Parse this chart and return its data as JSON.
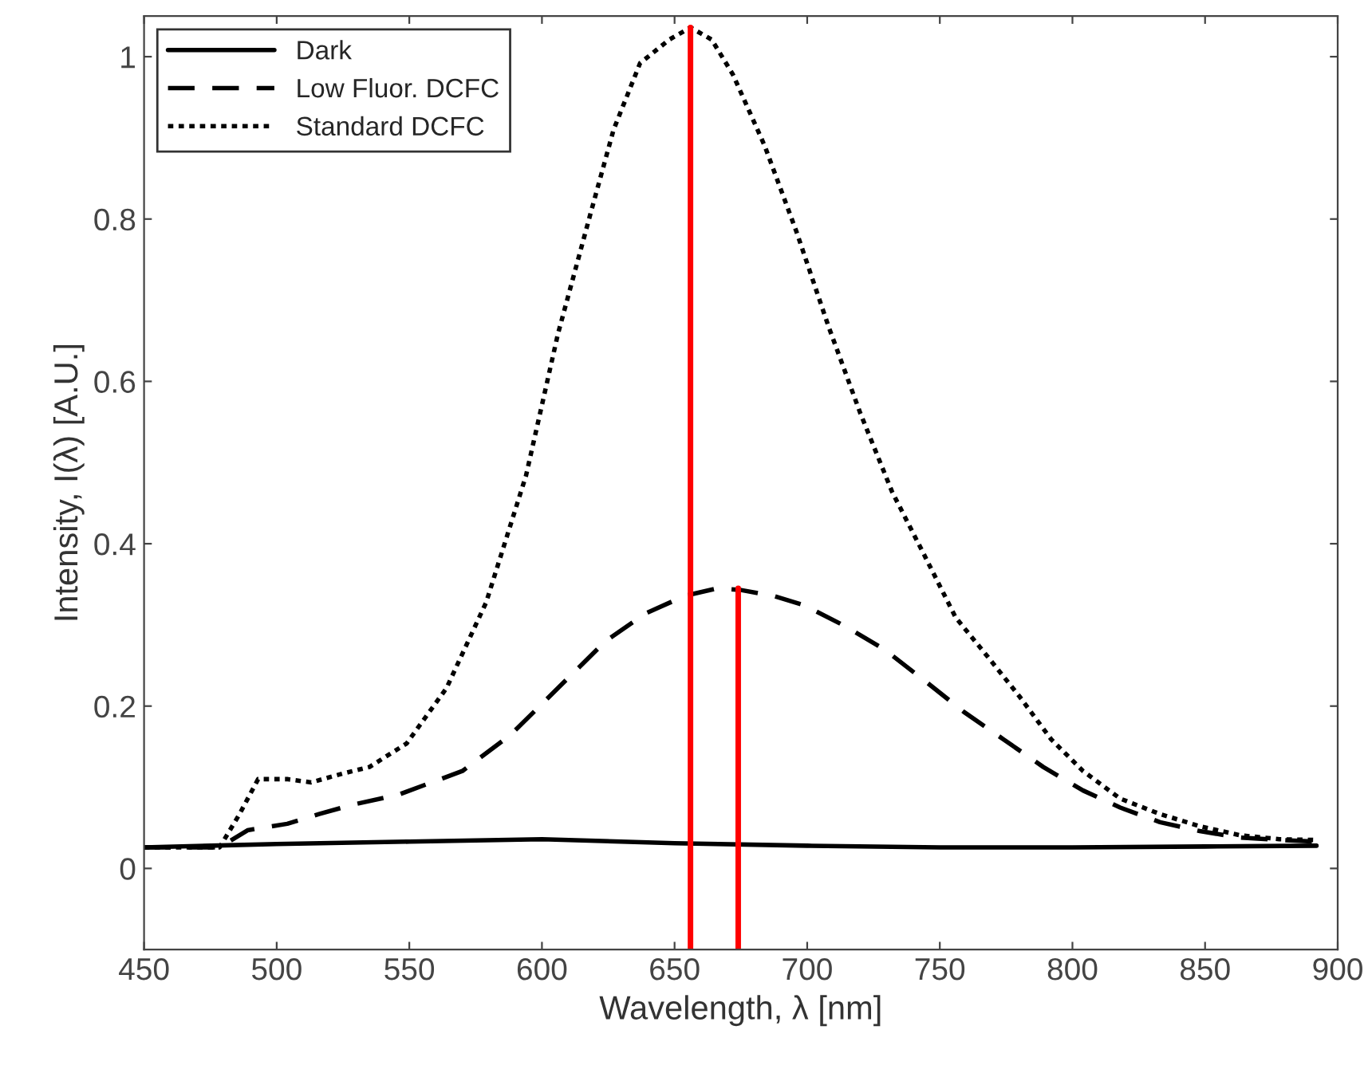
{
  "chart_data": {
    "type": "line",
    "xlabel": "Wavelength, λ [nm]",
    "ylabel": "Intensity, I(λ) [A.U.]",
    "xlim": [
      450,
      900
    ],
    "xticks": [
      450,
      500,
      550,
      600,
      650,
      700,
      750,
      800,
      850,
      900
    ],
    "ylim": [
      -0.1,
      1.05
    ],
    "yticks": [
      0,
      0.2,
      0.4,
      0.6,
      0.8,
      1
    ],
    "grid": false,
    "legend": "top left",
    "marker": "none",
    "series": [
      {
        "name": "Dark",
        "color": "#000000",
        "line_style": "solid",
        "x": [
          450,
          500,
          550,
          600,
          650,
          700,
          750,
          800,
          850,
          892
        ],
        "values": [
          0.026,
          0.03,
          0.033,
          0.036,
          0.031,
          0.028,
          0.026,
          0.026,
          0.027,
          0.028
        ]
      },
      {
        "name": "Low Fluor. DCFC",
        "color": "#000000",
        "line_style": "dashed",
        "x": [
          450,
          478.5,
          489,
          504,
          516,
          528,
          546,
          570,
          588,
          606,
          624,
          639,
          654,
          666,
          675,
          687,
          699,
          714,
          729,
          744,
          759,
          774,
          789,
          804,
          818,
          833,
          848,
          863,
          878,
          892
        ],
        "values": [
          0.026,
          0.026,
          0.047,
          0.055,
          0.067,
          0.078,
          0.091,
          0.12,
          0.164,
          0.222,
          0.28,
          0.314,
          0.336,
          0.345,
          0.343,
          0.336,
          0.324,
          0.299,
          0.27,
          0.232,
          0.193,
          0.159,
          0.125,
          0.096,
          0.075,
          0.057,
          0.046,
          0.038,
          0.035,
          0.033
        ]
      },
      {
        "name": "Standard DCFC",
        "color": "#000000",
        "line_style": "dotted",
        "x": [
          450,
          478.5,
          486,
          493,
          504,
          513,
          525,
          535,
          549,
          564,
          579,
          594,
          606,
          618,
          627,
          637,
          648,
          656,
          664,
          672,
          684,
          696,
          708,
          720,
          732,
          744,
          756,
          768,
          780,
          792,
          804,
          818,
          833,
          848,
          863,
          878,
          892
        ],
        "values": [
          0.026,
          0.026,
          0.067,
          0.11,
          0.11,
          0.106,
          0.117,
          0.125,
          0.154,
          0.222,
          0.328,
          0.484,
          0.658,
          0.803,
          0.91,
          0.992,
          1.021,
          1.036,
          1.021,
          0.978,
          0.89,
          0.784,
          0.668,
          0.561,
          0.464,
          0.387,
          0.309,
          0.261,
          0.212,
          0.159,
          0.12,
          0.086,
          0.067,
          0.052,
          0.041,
          0.036,
          0.035
        ]
      },
      {
        "color": "#ff0000",
        "line_style": "solid",
        "x": [
          656,
          656
        ],
        "values": [
          -0.1,
          1.036
        ]
      },
      {
        "color": "#ff0000",
        "line_style": "solid",
        "x": [
          674,
          674
        ],
        "values": [
          -0.1,
          0.345
        ]
      }
    ]
  }
}
